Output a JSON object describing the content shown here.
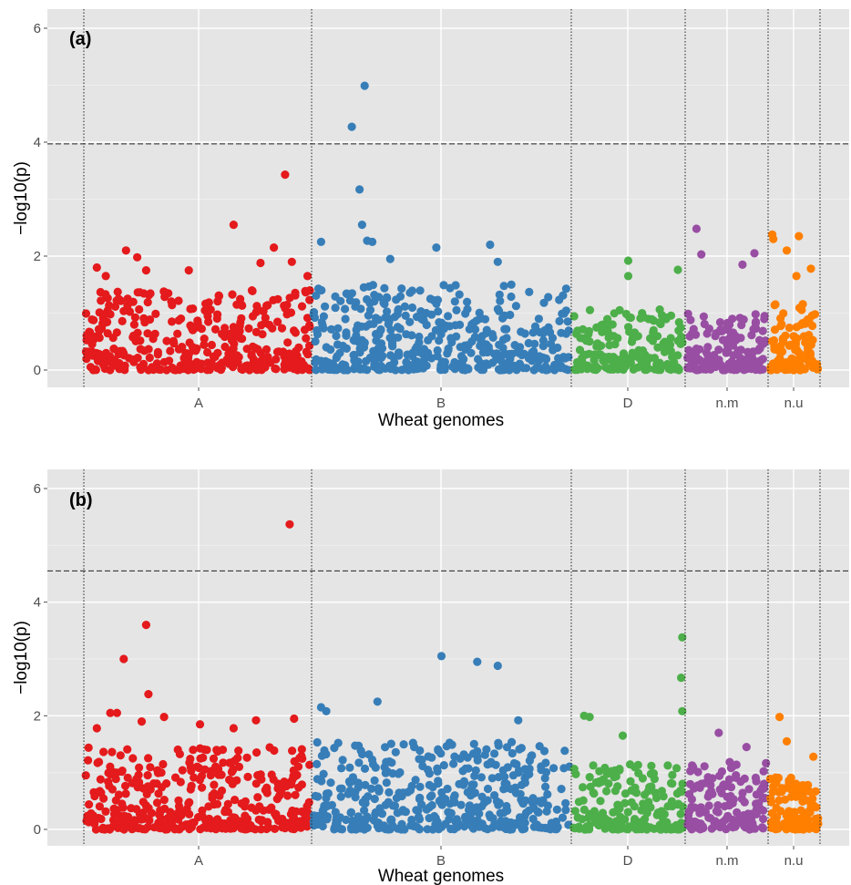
{
  "colors": {
    "A": "#e41a1c",
    "B": "#377eb8",
    "D": "#4daf4a",
    "n.m": "#984ea3",
    "n.u": "#ff7f00",
    "panel_bg": "#e5e5e5",
    "grid": "#ffffff"
  },
  "chart_data": [
    {
      "type": "scatter",
      "panel_label": "(a)",
      "xlabel": "Wheat genomes",
      "ylabel": "−log10(p)",
      "ylim": [
        -0.35,
        6.2
      ],
      "yticks": [
        "0",
        "2",
        "4",
        "6"
      ],
      "threshold": 3.97,
      "categories": [
        "A",
        "B",
        "D",
        "n.m",
        "n.u"
      ],
      "top_points": [
        {
          "genome": "A",
          "pos": 0.05,
          "y": 1.8
        },
        {
          "genome": "A",
          "pos": 0.09,
          "y": 1.65
        },
        {
          "genome": "A",
          "pos": 0.18,
          "y": 2.1
        },
        {
          "genome": "A",
          "pos": 0.23,
          "y": 1.98
        },
        {
          "genome": "A",
          "pos": 0.27,
          "y": 1.75
        },
        {
          "genome": "A",
          "pos": 0.46,
          "y": 1.75
        },
        {
          "genome": "A",
          "pos": 0.66,
          "y": 2.55
        },
        {
          "genome": "A",
          "pos": 0.78,
          "y": 1.88
        },
        {
          "genome": "A",
          "pos": 0.84,
          "y": 2.15
        },
        {
          "genome": "A",
          "pos": 0.89,
          "y": 3.43
        },
        {
          "genome": "A",
          "pos": 0.92,
          "y": 1.9
        },
        {
          "genome": "A",
          "pos": 0.99,
          "y": 1.65
        },
        {
          "genome": "B",
          "pos": 0.03,
          "y": 2.25
        },
        {
          "genome": "B",
          "pos": 0.15,
          "y": 4.27
        },
        {
          "genome": "B",
          "pos": 0.18,
          "y": 3.17
        },
        {
          "genome": "B",
          "pos": 0.19,
          "y": 2.55
        },
        {
          "genome": "B",
          "pos": 0.2,
          "y": 4.99
        },
        {
          "genome": "B",
          "pos": 0.21,
          "y": 2.27
        },
        {
          "genome": "B",
          "pos": 0.23,
          "y": 2.25
        },
        {
          "genome": "B",
          "pos": 0.3,
          "y": 1.95
        },
        {
          "genome": "B",
          "pos": 0.48,
          "y": 2.15
        },
        {
          "genome": "B",
          "pos": 0.69,
          "y": 2.2
        },
        {
          "genome": "B",
          "pos": 0.72,
          "y": 1.9
        },
        {
          "genome": "D",
          "pos": 0.5,
          "y": 1.92
        },
        {
          "genome": "D",
          "pos": 0.5,
          "y": 1.65
        },
        {
          "genome": "D",
          "pos": 0.95,
          "y": 1.76
        },
        {
          "genome": "n.m",
          "pos": 0.12,
          "y": 2.48
        },
        {
          "genome": "n.m",
          "pos": 0.18,
          "y": 2.03
        },
        {
          "genome": "n.m",
          "pos": 0.7,
          "y": 1.85
        },
        {
          "genome": "n.m",
          "pos": 0.85,
          "y": 2.05
        },
        {
          "genome": "n.u",
          "pos": 0.05,
          "y": 2.38
        },
        {
          "genome": "n.u",
          "pos": 0.07,
          "y": 2.3
        },
        {
          "genome": "n.u",
          "pos": 0.35,
          "y": 2.1
        },
        {
          "genome": "n.u",
          "pos": 0.6,
          "y": 2.35
        },
        {
          "genome": "n.u",
          "pos": 0.55,
          "y": 1.65
        },
        {
          "genome": "n.u",
          "pos": 0.85,
          "y": 1.78
        }
      ],
      "bulk_points": [
        {
          "genome": "A",
          "count": 380,
          "typical_max": 1.4
        },
        {
          "genome": "B",
          "count": 440,
          "typical_max": 1.5
        },
        {
          "genome": "D",
          "count": 180,
          "typical_max": 1.1
        },
        {
          "genome": "n.m",
          "count": 150,
          "typical_max": 1.0
        },
        {
          "genome": "n.u",
          "count": 110,
          "typical_max": 1.2
        }
      ]
    },
    {
      "type": "scatter",
      "panel_label": "(b)",
      "xlabel": "Wheat genomes",
      "ylabel": "−log10(p)",
      "ylim": [
        -0.35,
        6.2
      ],
      "yticks": [
        "0",
        "2",
        "4",
        "6"
      ],
      "threshold": 4.55,
      "categories": [
        "A",
        "B",
        "D",
        "n.m",
        "n.u"
      ],
      "top_points": [
        {
          "genome": "A",
          "pos": 0.05,
          "y": 1.78
        },
        {
          "genome": "A",
          "pos": 0.11,
          "y": 2.05
        },
        {
          "genome": "A",
          "pos": 0.14,
          "y": 2.05
        },
        {
          "genome": "A",
          "pos": 0.17,
          "y": 3.0
        },
        {
          "genome": "A",
          "pos": 0.25,
          "y": 1.9
        },
        {
          "genome": "A",
          "pos": 0.27,
          "y": 3.6
        },
        {
          "genome": "A",
          "pos": 0.28,
          "y": 2.38
        },
        {
          "genome": "A",
          "pos": 0.35,
          "y": 1.98
        },
        {
          "genome": "A",
          "pos": 0.51,
          "y": 1.85
        },
        {
          "genome": "A",
          "pos": 0.66,
          "y": 1.78
        },
        {
          "genome": "A",
          "pos": 0.76,
          "y": 1.92
        },
        {
          "genome": "A",
          "pos": 0.91,
          "y": 5.37
        },
        {
          "genome": "A",
          "pos": 0.93,
          "y": 1.95
        },
        {
          "genome": "B",
          "pos": 0.03,
          "y": 2.15
        },
        {
          "genome": "B",
          "pos": 0.05,
          "y": 2.08
        },
        {
          "genome": "B",
          "pos": 0.25,
          "y": 2.25
        },
        {
          "genome": "B",
          "pos": 0.5,
          "y": 3.05
        },
        {
          "genome": "B",
          "pos": 0.64,
          "y": 2.95
        },
        {
          "genome": "B",
          "pos": 0.72,
          "y": 2.88
        },
        {
          "genome": "B",
          "pos": 0.8,
          "y": 1.92
        },
        {
          "genome": "D",
          "pos": 0.1,
          "y": 2.0
        },
        {
          "genome": "D",
          "pos": 0.15,
          "y": 1.98
        },
        {
          "genome": "D",
          "pos": 0.45,
          "y": 1.65
        },
        {
          "genome": "D",
          "pos": 0.99,
          "y": 3.38
        },
        {
          "genome": "D",
          "pos": 0.98,
          "y": 2.67
        },
        {
          "genome": "D",
          "pos": 0.99,
          "y": 2.08
        },
        {
          "genome": "n.m",
          "pos": 0.4,
          "y": 1.7
        },
        {
          "genome": "n.m",
          "pos": 0.75,
          "y": 1.45
        },
        {
          "genome": "n.u",
          "pos": 0.2,
          "y": 1.98
        },
        {
          "genome": "n.u",
          "pos": 0.35,
          "y": 1.55
        },
        {
          "genome": "n.u",
          "pos": 0.9,
          "y": 1.28
        }
      ],
      "bulk_points": [
        {
          "genome": "A",
          "count": 380,
          "typical_max": 1.45
        },
        {
          "genome": "B",
          "count": 440,
          "typical_max": 1.55
        },
        {
          "genome": "D",
          "count": 180,
          "typical_max": 1.15
        },
        {
          "genome": "n.m",
          "count": 150,
          "typical_max": 1.2
        },
        {
          "genome": "n.u",
          "count": 110,
          "typical_max": 1.0
        }
      ]
    }
  ]
}
